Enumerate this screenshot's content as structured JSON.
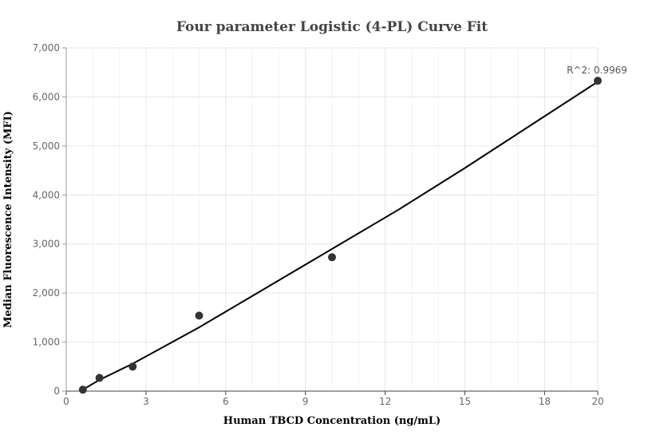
{
  "chart_data": {
    "type": "scatter",
    "title": "Four parameter Logistic (4-PL) Curve Fit",
    "xlabel": "Human TBCD Concentration (ng/mL)",
    "ylabel": "Median Fluorescence Intensity (MFI)",
    "xlim": [
      0,
      20
    ],
    "ylim": [
      0,
      7000
    ],
    "x_ticks": [
      0,
      3,
      6,
      9,
      12,
      15,
      18,
      20
    ],
    "y_ticks": [
      0,
      1000,
      2000,
      3000,
      4000,
      5000,
      6000,
      7000
    ],
    "x_tick_labels": [
      "0",
      "3",
      "6",
      "9",
      "12",
      "15",
      "18",
      "20"
    ],
    "y_tick_labels": [
      "0",
      "1,000",
      "2,000",
      "3,000",
      "4,000",
      "5,000",
      "6,000",
      "7,000"
    ],
    "grid": true,
    "series": [
      {
        "type": "scatter",
        "x": [
          0.625,
          1.25,
          2.5,
          5,
          10,
          20
        ],
        "y": [
          30,
          270,
          500,
          1540,
          2730,
          6330
        ]
      },
      {
        "type": "line",
        "x": [
          0.625,
          1.25,
          2.5,
          5,
          7.5,
          10,
          12.5,
          15,
          17.5,
          20
        ],
        "y": [
          30,
          230,
          560,
          1300,
          2100,
          2900,
          3700,
          4550,
          5430,
          6310
        ]
      }
    ],
    "annotation": {
      "text": "R^2: 0.9969",
      "x": 20,
      "y": 6330
    },
    "colors": {
      "point": "#333333",
      "line": "#000000",
      "grid": "#e6e6e6"
    }
  }
}
